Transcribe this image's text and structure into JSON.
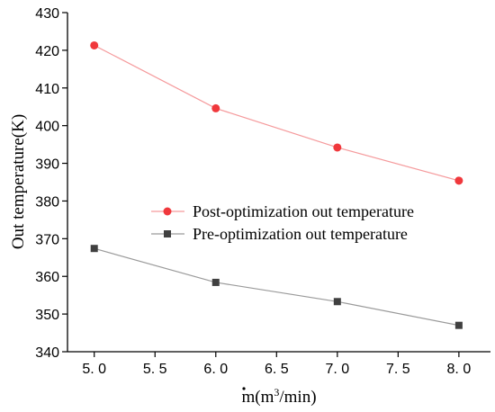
{
  "chart_data": {
    "type": "line",
    "x": [
      5.0,
      6.0,
      7.0,
      8.0
    ],
    "x_tick_labels": [
      "5. 0",
      "5. 5",
      "6. 0",
      "6. 5",
      "7. 0",
      "7. 5",
      "8. 0"
    ],
    "x_tick_values": [
      5.0,
      5.5,
      6.0,
      6.5,
      7.0,
      7.5,
      8.0
    ],
    "y_tick_values": [
      340,
      350,
      360,
      370,
      380,
      390,
      400,
      410,
      420,
      430
    ],
    "xlim": [
      4.78,
      8.26
    ],
    "ylim": [
      340,
      430
    ],
    "xlabel": "m(m³/min)",
    "xlabel_dot_over": "m",
    "ylabel": "Out temperature(K)",
    "grid": false,
    "legend_position": "center-right",
    "series": [
      {
        "name": "Post-optimization out temperature",
        "marker": "circle",
        "color": "#f0383c",
        "line_color": "#f59a9c",
        "values": [
          421.3,
          404.6,
          394.2,
          385.4
        ]
      },
      {
        "name": "Pre-optimization out temperature",
        "marker": "square",
        "color": "#404040",
        "line_color": "#9a9a9a",
        "values": [
          367.4,
          358.4,
          353.3,
          347.0
        ]
      }
    ]
  }
}
